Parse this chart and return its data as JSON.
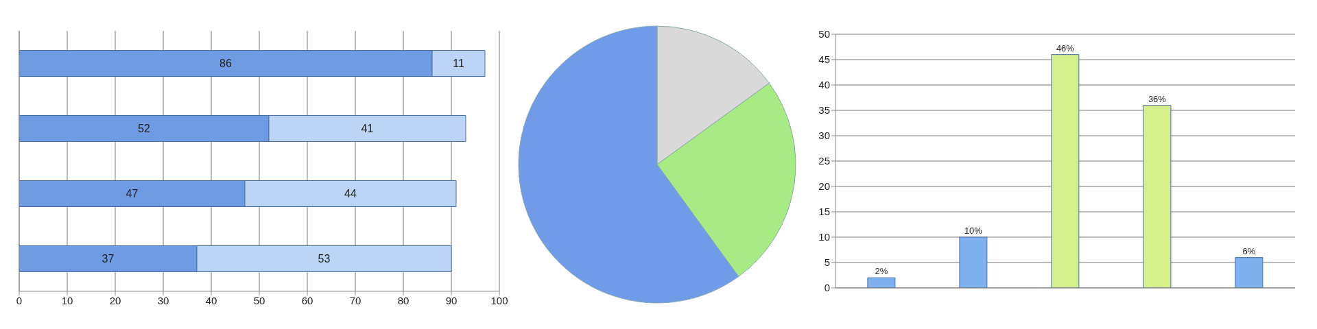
{
  "chart_data": [
    {
      "type": "bar",
      "orientation": "horizontal",
      "stacked": true,
      "categories": [
        null,
        null,
        null,
        null
      ],
      "series": [
        {
          "color": "#6f9be3",
          "values": [
            86,
            52,
            47,
            37
          ]
        },
        {
          "color": "#bcd5f7",
          "values": [
            11,
            41,
            44,
            53
          ]
        }
      ],
      "xlim": [
        0,
        100
      ],
      "xticks": [
        0,
        10,
        20,
        30,
        40,
        50,
        60,
        70,
        80,
        90,
        100
      ],
      "grid": "x",
      "data_labels": true
    },
    {
      "type": "pie",
      "categories": [
        null,
        null,
        null
      ],
      "values": [
        15,
        25,
        60
      ],
      "colors": [
        "#d9d9d9",
        "#a8eb84",
        "#6f9be8"
      ]
    },
    {
      "type": "bar",
      "categories": [
        null,
        null,
        null,
        null,
        null
      ],
      "values": [
        2,
        10,
        46,
        36,
        6
      ],
      "colors": [
        "#7fb0f0",
        "#7fb0f0",
        "#d4ef8c",
        "#d4ef8c",
        "#7fb0f0"
      ],
      "value_labels": [
        "2%",
        "10%",
        "46%",
        "36%",
        "6%"
      ],
      "ylim": [
        0,
        50
      ],
      "yticks": [
        0,
        5,
        10,
        15,
        20,
        25,
        30,
        35,
        40,
        45,
        50
      ],
      "grid": "y"
    }
  ]
}
